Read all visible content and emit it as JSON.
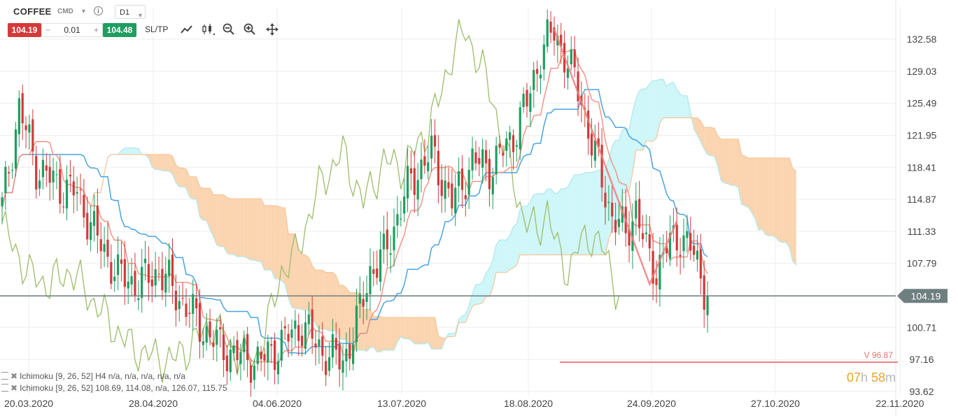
{
  "toolbar": {
    "symbol": "COFFEE",
    "symbol_type": "CMD",
    "info_icon": "i",
    "timeframe": "D1",
    "sell_price": "104.19",
    "buy_price": "104.48",
    "volume": "0.01",
    "minus": "−",
    "plus": "+",
    "sltp_label": "SL/TP",
    "icons": [
      "line-chart-icon",
      "candles-icon",
      "zoom-out-icon",
      "zoom-in-icon",
      "move-icon"
    ]
  },
  "indicators": [
    {
      "label": "Ichimoku [9, 26, 52] H4 n/a, n/a, n/a, n/a, n/a"
    },
    {
      "label": "Ichimoku [9, 26, 52] 108.69, 114.08, n/a, 126.07, 115.75"
    }
  ],
  "timer": {
    "hours": "07",
    "h_unit": "h",
    "minutes": "58",
    "m_unit": "m"
  },
  "colors": {
    "up": "#1e9e60",
    "down": "#d33a3a",
    "tenkan": "#f0907c",
    "kijun": "#4aa3df",
    "chikou": "#9cbc6a",
    "cloud_bull": "#cff6f8",
    "cloud_bear": "#fbd4b0",
    "current_line": "#6e7f80",
    "level_line": "#f08080"
  },
  "chart_data": {
    "type": "candlestick",
    "ylim": [
      93.0,
      135.0
    ],
    "y_ticks": [
      "132.58",
      "129.03",
      "125.49",
      "121.95",
      "118.41",
      "114.87",
      "111.33",
      "107.79",
      "104.25",
      "100.71",
      "97.16",
      "93.62"
    ],
    "x_ticks": [
      "20.03.2020",
      "28.04.2020",
      "04.06.2020",
      "13.07.2020",
      "18.08.2020",
      "24.09.2020",
      "27.10.2020",
      "22.11.2020"
    ],
    "current_price": 104.19,
    "current_label": "104.19",
    "level": 96.87,
    "level_label": "V 96.87",
    "anchors": [
      {
        "i": 0,
        "v": 114.0
      },
      {
        "i": 5,
        "v": 125.0
      },
      {
        "i": 10,
        "v": 118.5
      },
      {
        "i": 16,
        "v": 116.5
      },
      {
        "i": 22,
        "v": 115.5
      },
      {
        "i": 28,
        "v": 110.5
      },
      {
        "i": 34,
        "v": 106.5
      },
      {
        "i": 40,
        "v": 105.5
      },
      {
        "i": 46,
        "v": 107.0
      },
      {
        "i": 52,
        "v": 104.0
      },
      {
        "i": 58,
        "v": 101.0
      },
      {
        "i": 64,
        "v": 98.5
      },
      {
        "i": 70,
        "v": 97.5
      },
      {
        "i": 76,
        "v": 97.0
      },
      {
        "i": 82,
        "v": 99.0
      },
      {
        "i": 88,
        "v": 101.0
      },
      {
        "i": 94,
        "v": 98.0
      },
      {
        "i": 100,
        "v": 97.0
      },
      {
        "i": 104,
        "v": 101.0
      },
      {
        "i": 108,
        "v": 107.0
      },
      {
        "i": 112,
        "v": 108.5
      },
      {
        "i": 116,
        "v": 113.0
      },
      {
        "i": 120,
        "v": 117.0
      },
      {
        "i": 126,
        "v": 120.0
      },
      {
        "i": 132,
        "v": 114.5
      },
      {
        "i": 138,
        "v": 119.0
      },
      {
        "i": 144,
        "v": 118.5
      },
      {
        "i": 150,
        "v": 122.0
      },
      {
        "i": 154,
        "v": 125.5
      },
      {
        "i": 158,
        "v": 131.0
      },
      {
        "i": 162,
        "v": 133.5
      },
      {
        "i": 166,
        "v": 130.0
      },
      {
        "i": 170,
        "v": 126.0
      },
      {
        "i": 173,
        "v": 121.0
      },
      {
        "i": 176,
        "v": 117.0
      },
      {
        "i": 179,
        "v": 113.0
      },
      {
        "i": 183,
        "v": 111.0
      },
      {
        "i": 186,
        "v": 114.0
      },
      {
        "i": 189,
        "v": 109.0
      },
      {
        "i": 192,
        "v": 107.0
      },
      {
        "i": 195,
        "v": 109.5
      },
      {
        "i": 199,
        "v": 111.0
      },
      {
        "i": 202,
        "v": 109.5
      },
      {
        "i": 205,
        "v": 106.5
      },
      {
        "i": 207,
        "v": 104.2
      }
    ]
  }
}
